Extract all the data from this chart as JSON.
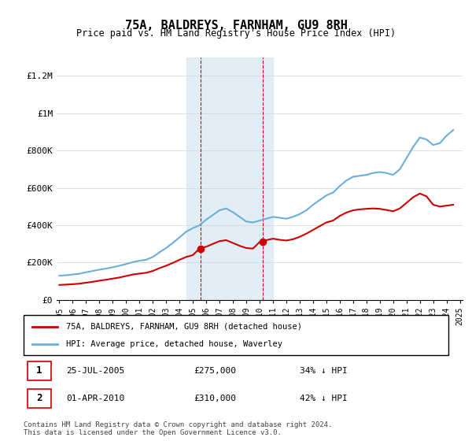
{
  "title": "75A, BALDREYS, FARNHAM, GU9 8RH",
  "subtitle": "Price paid vs. HM Land Registry's House Price Index (HPI)",
  "ylabel_ticks": [
    "£0",
    "£200K",
    "£400K",
    "£600K",
    "£800K",
    "£1M",
    "£1.2M"
  ],
  "ytick_values": [
    0,
    200000,
    400000,
    600000,
    800000,
    1000000,
    1200000
  ],
  "ylim": [
    0,
    1300000
  ],
  "hpi_color": "#6baed6",
  "price_color": "#cc0000",
  "shaded_color": "#d6e8f5",
  "vline_color": "#cc0000",
  "annotation1": {
    "label": "1",
    "date_str": "25-JUL-2005",
    "price": "£275,000",
    "pct": "34% ↓ HPI",
    "x_year": 2005.57
  },
  "annotation2": {
    "label": "2",
    "date_str": "01-APR-2010",
    "price": "£310,000",
    "pct": "42% ↓ HPI",
    "x_year": 2010.25
  },
  "legend_line1": "75A, BALDREYS, FARNHAM, GU9 8RH (detached house)",
  "legend_line2": "HPI: Average price, detached house, Waverley",
  "footnote": "Contains HM Land Registry data © Crown copyright and database right 2024.\nThis data is licensed under the Open Government Licence v3.0.",
  "hpi_x": [
    1995.0,
    1995.5,
    1996.0,
    1996.5,
    1997.0,
    1997.5,
    1998.0,
    1998.5,
    1999.0,
    1999.5,
    2000.0,
    2000.5,
    2001.0,
    2001.5,
    2002.0,
    2002.5,
    2003.0,
    2003.5,
    2004.0,
    2004.5,
    2005.0,
    2005.5,
    2006.0,
    2006.5,
    2007.0,
    2007.5,
    2008.0,
    2008.5,
    2009.0,
    2009.5,
    2010.0,
    2010.5,
    2011.0,
    2011.5,
    2012.0,
    2012.5,
    2013.0,
    2013.5,
    2014.0,
    2014.5,
    2015.0,
    2015.5,
    2016.0,
    2016.5,
    2017.0,
    2017.5,
    2018.0,
    2018.5,
    2019.0,
    2019.5,
    2020.0,
    2020.5,
    2021.0,
    2021.5,
    2022.0,
    2022.5,
    2023.0,
    2023.5,
    2024.0,
    2024.5
  ],
  "hpi_y": [
    130000,
    132000,
    136000,
    140000,
    148000,
    155000,
    162000,
    168000,
    175000,
    183000,
    192000,
    202000,
    210000,
    215000,
    230000,
    255000,
    278000,
    305000,
    335000,
    365000,
    385000,
    400000,
    430000,
    455000,
    480000,
    490000,
    470000,
    445000,
    420000,
    415000,
    425000,
    435000,
    445000,
    440000,
    435000,
    445000,
    460000,
    480000,
    510000,
    535000,
    560000,
    575000,
    610000,
    640000,
    660000,
    665000,
    670000,
    680000,
    685000,
    680000,
    670000,
    700000,
    760000,
    820000,
    870000,
    860000,
    830000,
    840000,
    880000,
    910000
  ],
  "price_x": [
    1995.0,
    1995.5,
    1996.0,
    1996.5,
    1997.0,
    1997.5,
    1998.0,
    1998.5,
    1999.0,
    1999.5,
    2000.0,
    2000.5,
    2001.0,
    2001.5,
    2002.0,
    2002.5,
    2003.0,
    2003.5,
    2004.0,
    2004.5,
    2005.0,
    2005.5,
    2006.0,
    2006.5,
    2007.0,
    2007.5,
    2008.0,
    2008.5,
    2009.0,
    2009.5,
    2010.0,
    2010.5,
    2011.0,
    2011.5,
    2012.0,
    2012.5,
    2013.0,
    2013.5,
    2014.0,
    2014.5,
    2015.0,
    2015.5,
    2016.0,
    2016.5,
    2017.0,
    2017.5,
    2018.0,
    2018.5,
    2019.0,
    2019.5,
    2020.0,
    2020.5,
    2021.0,
    2021.5,
    2022.0,
    2022.5,
    2023.0,
    2023.5,
    2024.0,
    2024.5
  ],
  "price_y": [
    80000,
    82000,
    84000,
    87000,
    92000,
    97000,
    103000,
    108000,
    114000,
    120000,
    128000,
    136000,
    141000,
    145000,
    155000,
    170000,
    183000,
    198000,
    215000,
    230000,
    240000,
    275000,
    285000,
    300000,
    315000,
    320000,
    305000,
    290000,
    278000,
    275000,
    310000,
    320000,
    328000,
    322000,
    318000,
    325000,
    338000,
    355000,
    375000,
    395000,
    415000,
    425000,
    450000,
    468000,
    480000,
    485000,
    488000,
    490000,
    488000,
    482000,
    475000,
    490000,
    520000,
    550000,
    570000,
    555000,
    510000,
    500000,
    505000,
    510000
  ],
  "xtick_years": [
    1995,
    1996,
    1997,
    1998,
    1999,
    2000,
    2001,
    2002,
    2003,
    2004,
    2005,
    2006,
    2007,
    2008,
    2009,
    2010,
    2011,
    2012,
    2013,
    2014,
    2015,
    2016,
    2017,
    2018,
    2019,
    2020,
    2021,
    2022,
    2023,
    2024,
    2025
  ],
  "shade_x1": 2004.5,
  "shade_x2": 2011.0,
  "dot1_x": 2005.57,
  "dot1_y": 275000,
  "dot2_x": 2010.25,
  "dot2_y": 310000
}
